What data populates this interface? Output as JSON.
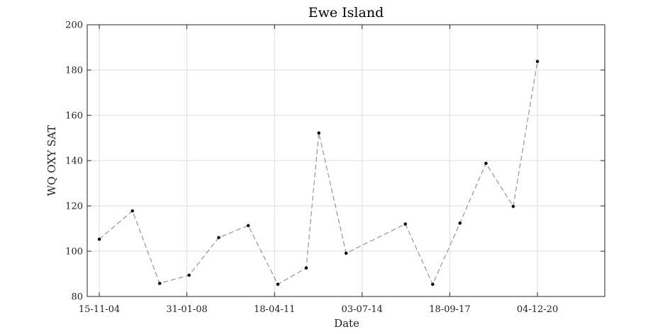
{
  "chart_data": {
    "type": "line",
    "title": "Ewe Island",
    "xlabel": "Date",
    "ylabel": "WQ OXY SAT",
    "ylim": [
      80,
      200
    ],
    "yticks": [
      80,
      100,
      120,
      140,
      160,
      180,
      200
    ],
    "xlim": [
      "2004-06-06",
      "2023-05-24"
    ],
    "xticks": [
      {
        "date": "2004-11-15",
        "label": "15-11-04"
      },
      {
        "date": "2008-01-31",
        "label": "31-01-08"
      },
      {
        "date": "2011-04-18",
        "label": "18-04-11"
      },
      {
        "date": "2014-07-03",
        "label": "03-07-14"
      },
      {
        "date": "2017-09-18",
        "label": "18-09-17"
      },
      {
        "date": "2020-12-04",
        "label": "04-12-20"
      }
    ],
    "grid": true,
    "series": [
      {
        "line_style": "dashed",
        "line_color": "#8c8c8c",
        "marker_color": "#111111",
        "x": [
          "2004-11-15",
          "2006-02-01",
          "2007-02-01",
          "2008-03-01",
          "2009-04-01",
          "2010-05-01",
          "2011-06-01",
          "2012-06-15",
          "2012-12-01",
          "2013-12-01",
          "2016-02-01",
          "2017-02-01",
          "2018-02-01",
          "2019-01-15",
          "2020-01-15",
          "2020-12-04"
        ],
        "y": [
          105.3,
          117.8,
          85.8,
          89.4,
          106.0,
          111.3,
          85.4,
          92.6,
          152.2,
          99.1,
          112.0,
          85.4,
          112.4,
          138.8,
          119.8,
          183.8
        ]
      }
    ]
  }
}
